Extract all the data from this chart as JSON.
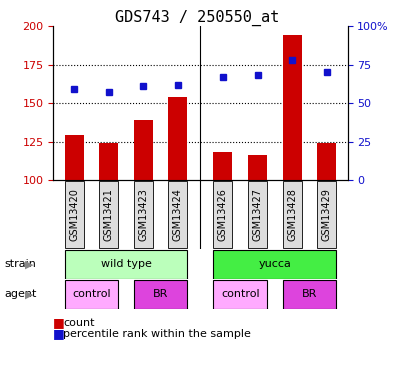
{
  "title": "GDS743 / 250550_at",
  "samples": [
    "GSM13420",
    "GSM13421",
    "GSM13423",
    "GSM13424",
    "GSM13426",
    "GSM13427",
    "GSM13428",
    "GSM13429"
  ],
  "counts": [
    129,
    124,
    139,
    154,
    118,
    116,
    194,
    124
  ],
  "percentile_ranks": [
    59,
    57,
    61,
    62,
    67,
    68,
    78,
    70
  ],
  "ylim_left": [
    100,
    200
  ],
  "ylim_right": [
    0,
    100
  ],
  "yticks_left": [
    100,
    125,
    150,
    175,
    200
  ],
  "yticks_right": [
    0,
    25,
    50,
    75,
    100
  ],
  "ytick_labels_right": [
    "0",
    "25",
    "50",
    "75",
    "100%"
  ],
  "bar_color": "#cc0000",
  "dot_color": "#1111cc",
  "strain_labels": [
    "wild type",
    "yucca"
  ],
  "strain_colors": [
    "#bbffbb",
    "#44ee44"
  ],
  "agent_labels": [
    "control",
    "BR",
    "control",
    "BR"
  ],
  "agent_colors_list": [
    "#ffaaff",
    "#dd44dd",
    "#ffaaff",
    "#dd44dd"
  ],
  "gridline_color": "#000000",
  "axis_color_left": "#cc0000",
  "axis_color_right": "#1111cc",
  "bar_width": 0.55,
  "tick_fontsize": 8,
  "title_fontsize": 11,
  "label_fontsize": 8,
  "sample_fontsize": 7,
  "legend_fontsize": 8
}
